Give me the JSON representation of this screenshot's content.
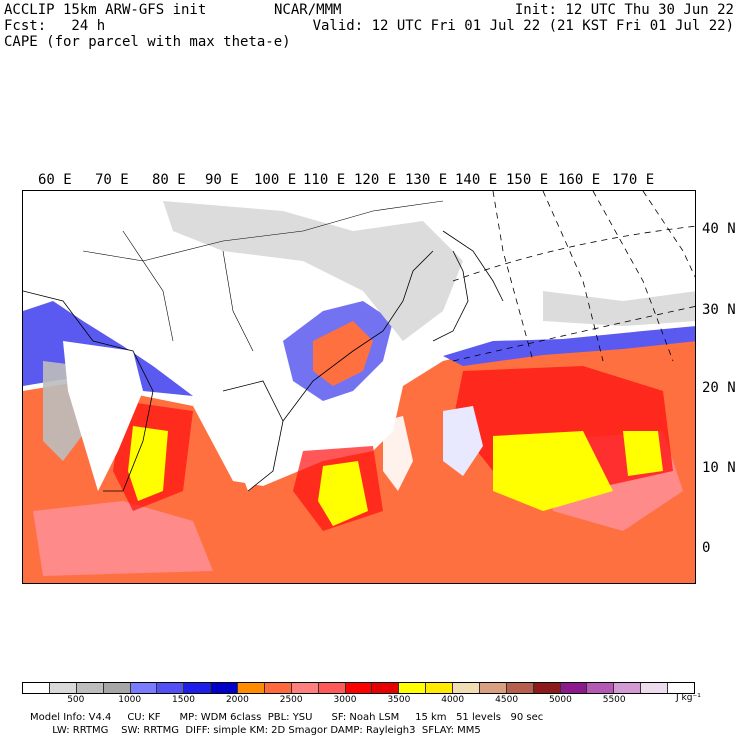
{
  "header": {
    "line1": "ACCLIP 15km ARW-GFS init",
    "line2": "Fcst:   24 h",
    "line3": "CAPE (for parcel with max theta-e)",
    "center": "NCAR/MMM",
    "init": "Init: 12 UTC Thu 30 Jun 22",
    "valid": "Valid: 12 UTC Fri 01 Jul 22 (21 KST Fri 01 Jul 22)"
  },
  "lon_labels": [
    "60 E",
    "70 E",
    "80 E",
    "90 E",
    "100 E",
    "110 E",
    "120 E",
    "130 E",
    "140 E",
    "150 E",
    "160 E",
    "170 E"
  ],
  "lat_labels": [
    "40 N",
    "30 N",
    "20 N",
    "10 N",
    "0"
  ],
  "colorbar": {
    "colors": [
      "#ffffff",
      "#d9d9d9",
      "#bdbdbd",
      "#a6a6a6",
      "#7b7bff",
      "#5050f5",
      "#1e1eeb",
      "#0000c8",
      "#ff8c00",
      "#ff6a3d",
      "#ff7f7f",
      "#ff5a5a",
      "#ff0000",
      "#e60000",
      "#ffff00",
      "#ffea00",
      "#f2dcb4",
      "#d8a080",
      "#b4604c",
      "#8c1c1c",
      "#8c1a8c",
      "#b45ab4",
      "#d29cd2",
      "#eedcee",
      "#ffffff"
    ],
    "labels": [
      "500",
      "1000",
      "1500",
      "2000",
      "2500",
      "3000",
      "3500",
      "4000",
      "4500",
      "5000",
      "5500"
    ],
    "unit": "J kg⁻¹"
  },
  "footer": {
    "line1": "Model Info: V4.4     CU: KF      MP: WDM 6class  PBL: YSU      SF: Noah LSM     15 km   51 levels   90 sec",
    "line2": "       LW: RRTMG    SW: RRTMG  DIFF: simple KM: 2D Smagor DAMP: Rayleigh3  SFLAY: MM5"
  },
  "map_colors": {
    "ocean": "#ff7040",
    "pink": "#ff8a8a",
    "red": "#ff1010",
    "yellow": "#ffff00",
    "blue": "#5a5af0",
    "dark_blue": "#1e1ee0",
    "gray": "#bdbdbd",
    "light_gray": "#dcdcdc"
  }
}
